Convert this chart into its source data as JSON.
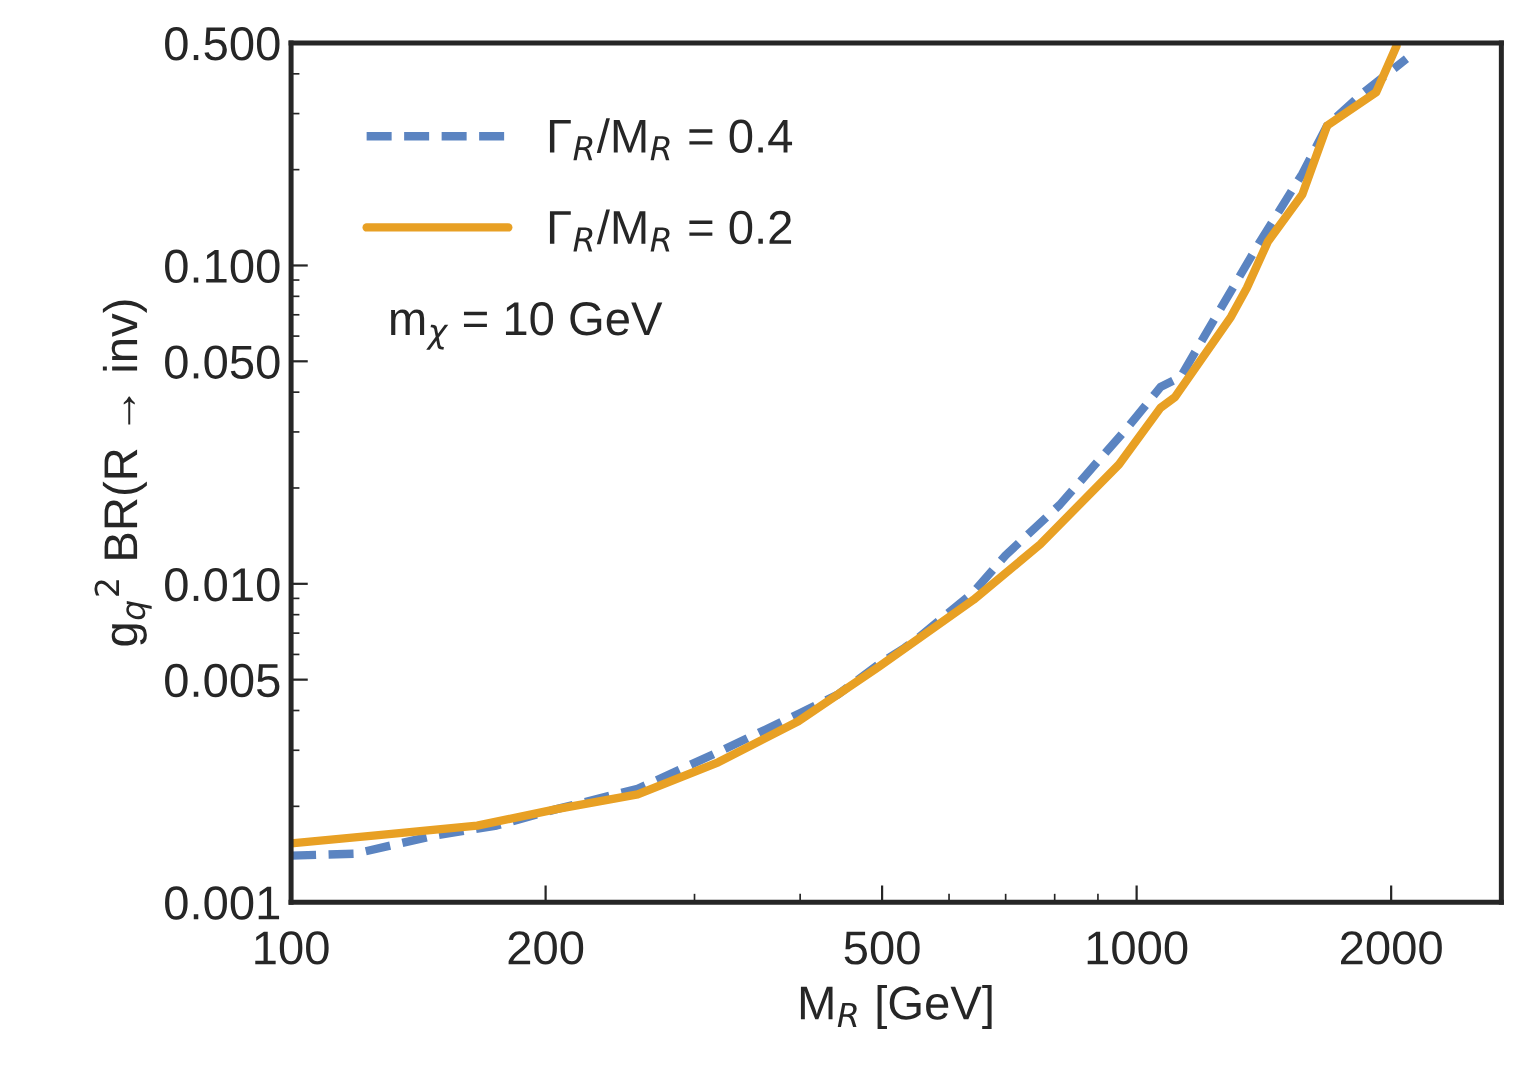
{
  "chart_data": {
    "type": "line",
    "xlabel": "M$_{R}$ [GeV]",
    "ylabel": "g$_{q}$$^{2}$ BR(R → inv)",
    "log": "xy",
    "grid": false,
    "legend": "top left",
    "xlim": [
      100,
      2700
    ],
    "xticks": [
      100,
      200,
      500,
      1000,
      2000
    ],
    "ylim": [
      0.001,
      0.5
    ],
    "yticks": [
      {
        "value": 0.001,
        "label": "0.001"
      },
      {
        "value": 0.005,
        "label": "0.005"
      },
      {
        "value": 0.01,
        "label": "0.010"
      },
      {
        "value": 0.05,
        "label": "0.050"
      },
      {
        "value": 0.1,
        "label": "0.100"
      },
      {
        "value": 0.5,
        "label": "0.500"
      }
    ],
    "annotations": [
      "m$_{χ}$ = 10 GeV"
    ],
    "series": [
      {
        "name": "Γ$_{R}$/M$_{R}$ = 0.4",
        "color": "#5b84c1",
        "line_style": "dashed",
        "x": [
          100,
          119,
          148,
          175,
          206,
          257,
          320,
          398,
          444,
          496,
          532,
          553,
          641,
          700,
          811,
          975,
          1067,
          1127,
          1256,
          1400,
          1570,
          1680,
          1840,
          2085
        ],
        "values": [
          0.0014,
          0.00142,
          0.00162,
          0.00174,
          0.00196,
          0.00227,
          0.00296,
          0.0039,
          0.0045,
          0.0056,
          0.0063,
          0.0068,
          0.0094,
          0.0123,
          0.0177,
          0.0309,
          0.0415,
          0.0446,
          0.073,
          0.119,
          0.194,
          0.275,
          0.343,
          0.446
        ]
      },
      {
        "name": "Γ$_{R}$/M$_{R}$ = 0.2",
        "color": "#e8a024",
        "line_style": "solid",
        "x": [
          100,
          126,
          166,
          206,
          257,
          320,
          398,
          496,
          641,
          769,
          953,
          1067,
          1110,
          1293,
          1350,
          1430,
          1570,
          1680,
          1920,
          2030
        ],
        "values": [
          0.00153,
          0.00162,
          0.00174,
          0.00196,
          0.00218,
          0.00275,
          0.0037,
          0.0055,
          0.0089,
          0.0133,
          0.0237,
          0.0357,
          0.0386,
          0.069,
          0.085,
          0.119,
          0.167,
          0.275,
          0.35,
          0.49
        ]
      }
    ]
  }
}
